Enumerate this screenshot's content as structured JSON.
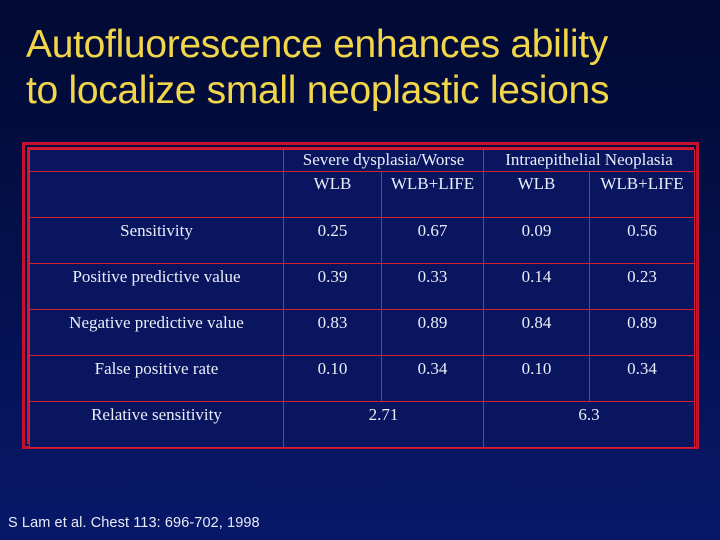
{
  "slide": {
    "title_lines": [
      "Autofluorescence enhances ability",
      "to localize small neoplastic lesions"
    ],
    "citation": "S Lam et al. Chest 113: 696-702, 1998",
    "colors": {
      "background_top": "#020a33",
      "background_bottom": "#07186a",
      "title": "#f2d64a",
      "table_border": "#c8102e",
      "table_text": "#e9eef8",
      "citation_text": "#e8ecf7"
    }
  },
  "table": {
    "group_headers": [
      "Severe dysplasia/Worse",
      "Intraepithelial Neoplasia"
    ],
    "sub_headers": [
      "WLB",
      "WLB+LIFE",
      "WLB",
      "WLB+LIFE"
    ],
    "rows": [
      {
        "label": "Sensitivity",
        "values": [
          "0.25",
          "0.67",
          "0.09",
          "0.56"
        ]
      },
      {
        "label": "Positive predictive value",
        "values": [
          "0.39",
          "0.33",
          "0.14",
          "0.23"
        ]
      },
      {
        "label": "Negative predictive value",
        "values": [
          "0.83",
          "0.89",
          "0.84",
          "0.89"
        ]
      },
      {
        "label": "False positive rate",
        "values": [
          "0.10",
          "0.34",
          "0.10",
          "0.34"
        ]
      }
    ],
    "relative_sensitivity": {
      "label": "Relative sensitivity",
      "severe_dysplasia": "2.71",
      "intraepithelial_neoplasia": "6.3"
    }
  }
}
